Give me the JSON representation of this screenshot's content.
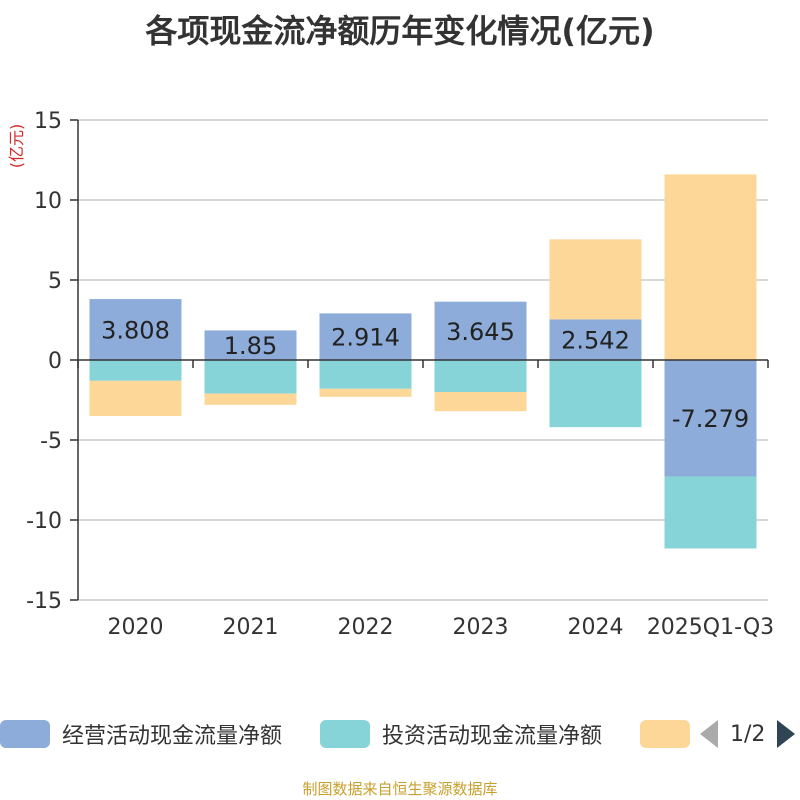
{
  "chart_data": {
    "type": "bar",
    "stacked": true,
    "title": "各项现金流净额历年变化情况(亿元)",
    "ylabel": "(亿元)",
    "xlabel": "",
    "categories": [
      "2020",
      "2021",
      "2022",
      "2023",
      "2024",
      "2025Q1-Q3"
    ],
    "ylim": [
      -15,
      15
    ],
    "yticks": [
      -15,
      -10,
      -5,
      0,
      5,
      10,
      15
    ],
    "series": [
      {
        "name": "经营活动现金流量净额",
        "color": "#8eacd9",
        "values": [
          3.808,
          1.85,
          2.914,
          3.645,
          2.542,
          -7.279
        ],
        "labels": [
          "3.808",
          "1.85",
          "2.914",
          "3.645",
          "2.542",
          "-7.279"
        ]
      },
      {
        "name": "投资活动现金流量净额",
        "color": "#87d4d8",
        "values": [
          -1.3,
          -2.1,
          -1.8,
          -2.0,
          -4.2,
          -4.5
        ]
      },
      {
        "name": "",
        "color": "#fdd798",
        "values": [
          -2.2,
          -0.7,
          -0.5,
          -1.2,
          5.0,
          11.6
        ]
      }
    ],
    "legend_position": "bottom",
    "grid": true
  },
  "legend": {
    "page": "1/2"
  },
  "source": "制图数据来自恒生聚源数据库"
}
